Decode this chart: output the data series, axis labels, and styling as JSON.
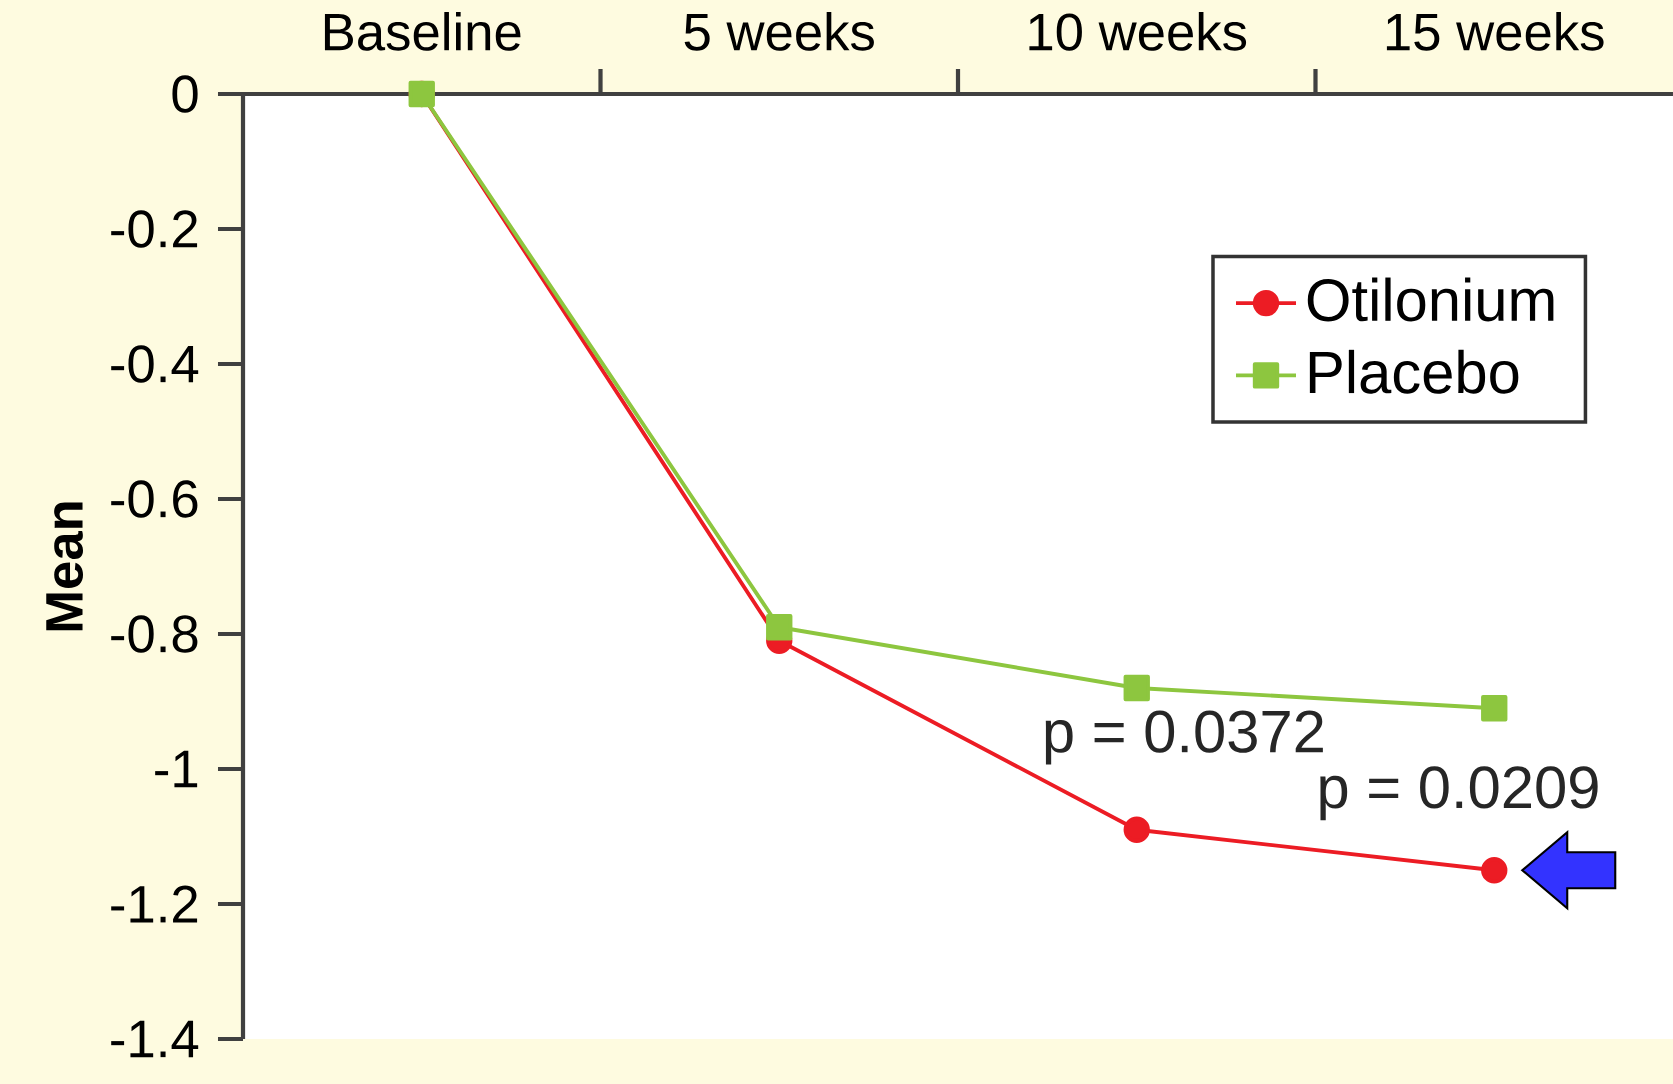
{
  "chart_data": {
    "type": "line",
    "ylabel": "Mean",
    "categories": [
      "Baseline",
      "5 weeks",
      "10 weeks",
      "15 weeks"
    ],
    "series": [
      {
        "name": "Otilonium",
        "color": "#ec1c24",
        "marker": "circle",
        "values": [
          0,
          -0.81,
          -1.09,
          -1.15
        ]
      },
      {
        "name": "Placebo",
        "color": "#8dc63f",
        "marker": "square",
        "values": [
          0,
          -0.79,
          -0.88,
          -0.91
        ]
      }
    ],
    "ylim": [
      -1.4,
      0
    ],
    "yticks": [
      0,
      -0.2,
      -0.4,
      -0.6,
      -0.8,
      -1,
      -1.2,
      -1.4
    ],
    "annotations": [
      "p = 0.0372",
      "p = 0.0209"
    ],
    "legend": "top right",
    "line_style": "solid"
  }
}
